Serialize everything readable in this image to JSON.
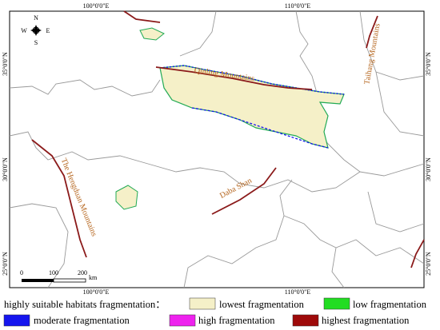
{
  "map": {
    "graticule": {
      "top": [
        "100°0'0\"E",
        "110°0'0\"E"
      ],
      "bottom": [
        "100°0'0\"E",
        "110°0'0\"E"
      ],
      "left": [
        "35°0'0\"N",
        "30°0'0\"N",
        "25°0'0\"N"
      ],
      "right": [
        "35°0'0\"N",
        "30°0'0\"N",
        "25°0'0\"N"
      ]
    },
    "compass": {
      "north": "N",
      "south": "S",
      "east": "E",
      "west": "W"
    },
    "mountains": [
      "Qinling Mountains",
      "Taihang Mountains",
      "The Hengduan Mountains",
      "Daba Shan"
    ],
    "scale": {
      "ticks": [
        "0",
        "100",
        "200"
      ],
      "unit": "km"
    }
  },
  "legend": {
    "title": "highly suitable habitats fragmentation：",
    "items": [
      {
        "label": "lowest fragmentation",
        "color": "#f5f0c8"
      },
      {
        "label": "low fragmentation",
        "color": "#22dd22"
      },
      {
        "label": "moderate fragmentation",
        "color": "#1515ee"
      },
      {
        "label": "high fragmentation",
        "color": "#ee22ee"
      },
      {
        "label": "highest fragmentation",
        "color": "#9e0a0a"
      }
    ]
  }
}
